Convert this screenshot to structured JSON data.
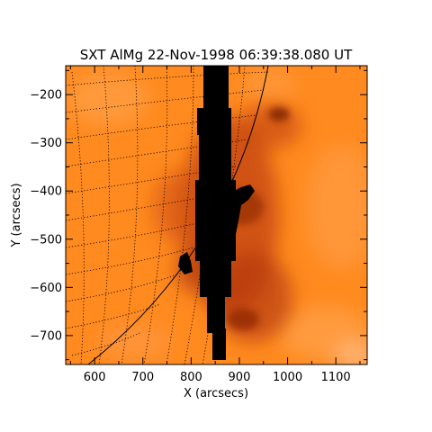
{
  "title": "SXT AlMg 22-Nov-1998 06:39:38.080 UT",
  "xlabel": "X (arcsecs)",
  "ylabel": "Y (arcsecs)",
  "x_range": [
    540,
    1165
  ],
  "y_range": [
    -760,
    -140
  ],
  "x_ticks": [
    {
      "value": 600,
      "label": "600"
    },
    {
      "value": 700,
      "label": "700"
    },
    {
      "value": 800,
      "label": "800"
    },
    {
      "value": 900,
      "label": "900"
    },
    {
      "value": 1000,
      "label": "1000"
    },
    {
      "value": 1100,
      "label": "1100"
    }
  ],
  "y_ticks": [
    {
      "value": -200,
      "label": "−200"
    },
    {
      "value": -300,
      "label": "−300"
    },
    {
      "value": -400,
      "label": "−400"
    },
    {
      "value": -500,
      "label": "−500"
    },
    {
      "value": -600,
      "label": "−600"
    },
    {
      "value": -700,
      "label": "−700"
    }
  ],
  "colors": {
    "background": "#ff8a1f",
    "bright": "#ffb070",
    "dark": "#b83a0a",
    "saturated": "#000000"
  }
}
